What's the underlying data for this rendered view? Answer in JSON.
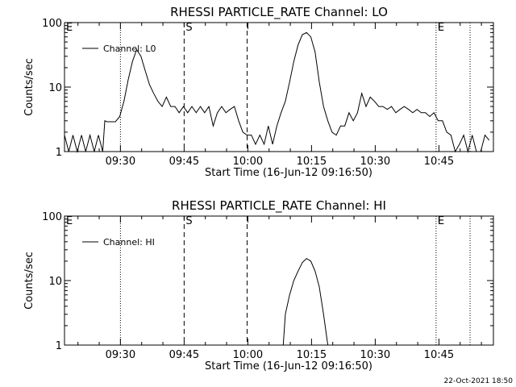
{
  "chart_data": [
    {
      "type": "line",
      "title": "RHESSI PARTICLE_RATE Channel: LO",
      "xlabel": "Start Time (16-Jun-12 09:16:50)",
      "ylabel": "Counts/sec",
      "yscale": "log",
      "ylim": [
        1,
        100
      ],
      "xlim_minutes": [
        0,
        101
      ],
      "x_tick_labels": [
        "09:30",
        "09:45",
        "10:00",
        "10:15",
        "10:30",
        "10:45"
      ],
      "y_tick_labels": [
        "1",
        "10",
        "100"
      ],
      "legend": "top-left",
      "series": [
        {
          "name": "Channel: L0",
          "x": [
            0,
            1,
            2,
            3,
            4,
            5,
            6,
            7,
            8,
            9,
            9.5,
            10,
            11,
            12,
            13,
            14,
            15,
            16,
            17,
            18,
            19,
            20,
            21,
            22,
            23,
            24,
            25,
            26,
            27,
            28,
            29,
            30,
            31,
            32,
            33,
            34,
            35,
            36,
            37,
            38,
            39,
            40,
            41,
            42,
            43,
            44,
            45,
            46,
            47,
            48,
            49,
            50,
            51,
            52,
            53,
            54,
            55,
            56,
            57,
            58,
            59,
            60,
            61,
            62,
            63,
            64,
            65,
            66,
            67,
            68,
            69,
            70,
            71,
            72,
            73,
            74,
            75,
            76,
            77,
            78,
            79,
            80,
            81,
            82,
            83,
            84,
            85,
            86,
            87,
            88,
            89,
            90,
            91,
            92,
            93,
            94,
            95,
            96,
            97,
            98,
            99,
            100
          ],
          "y": [
            1.8,
            1,
            1.8,
            1,
            1.8,
            1,
            1.8,
            1,
            1.8,
            1,
            3,
            2.9,
            2.9,
            2.9,
            3.5,
            6,
            13,
            25,
            38,
            30,
            18,
            11,
            8,
            6,
            5,
            7,
            5,
            5,
            4,
            5,
            4,
            5,
            4,
            5,
            4,
            5,
            2.5,
            4,
            5,
            4,
            4.5,
            5,
            3,
            2,
            1.8,
            1.8,
            1.3,
            1.8,
            1.3,
            2.5,
            1.3,
            2.5,
            4,
            6,
            12,
            25,
            45,
            65,
            70,
            60,
            35,
            12,
            5,
            3,
            2,
            1.8,
            2.5,
            2.5,
            4,
            3,
            4,
            8,
            5,
            7,
            6,
            5,
            5,
            4.5,
            5,
            4,
            4.5,
            5,
            4.5,
            4,
            4.5,
            4,
            4,
            3.5,
            4,
            3,
            3,
            2,
            1.8,
            1,
            1.3,
            1.8,
            1,
            1.8,
            1,
            1,
            1.8,
            1.5
          ]
        }
      ],
      "vlines_dotted_minutes": [
        13.17,
        95.5
      ],
      "vlines_dashed_minutes": [
        28.17,
        43
      ],
      "markers": [
        {
          "label": "E",
          "x_minutes": 0
        },
        {
          "label": "S",
          "x_minutes": 28.17
        },
        {
          "label": "E",
          "x_minutes": 87.5
        }
      ],
      "vlines_dotted2_minutes": [
        87.5
      ]
    },
    {
      "type": "line",
      "title": "RHESSI PARTICLE_RATE Channel: HI",
      "xlabel": "Start Time (16-Jun-12 09:16:50)",
      "ylabel": "Counts/sec",
      "yscale": "log",
      "ylim": [
        1,
        100
      ],
      "xlim_minutes": [
        0,
        101
      ],
      "x_tick_labels": [
        "09:30",
        "09:45",
        "10:00",
        "10:15",
        "10:30",
        "10:45"
      ],
      "y_tick_labels": [
        "1",
        "10",
        "100"
      ],
      "legend": "top-left",
      "series": [
        {
          "name": "Channel: HI",
          "x": [
            51.5,
            52,
            53,
            54,
            55,
            56,
            57,
            58,
            59,
            60,
            61,
            62
          ],
          "y": [
            1,
            3,
            6,
            10,
            14,
            19,
            22,
            20,
            14,
            8,
            3,
            1
          ]
        }
      ],
      "vlines_dotted_minutes": [
        13.17,
        87.5,
        95.5
      ],
      "vlines_dashed_minutes": [
        28.17,
        43
      ],
      "markers": [
        {
          "label": "E",
          "x_minutes": 0
        },
        {
          "label": "S",
          "x_minutes": 28.17
        },
        {
          "label": "E",
          "x_minutes": 87.5
        }
      ]
    }
  ],
  "footer_timestamp": "22-Oct-2021 18:50"
}
